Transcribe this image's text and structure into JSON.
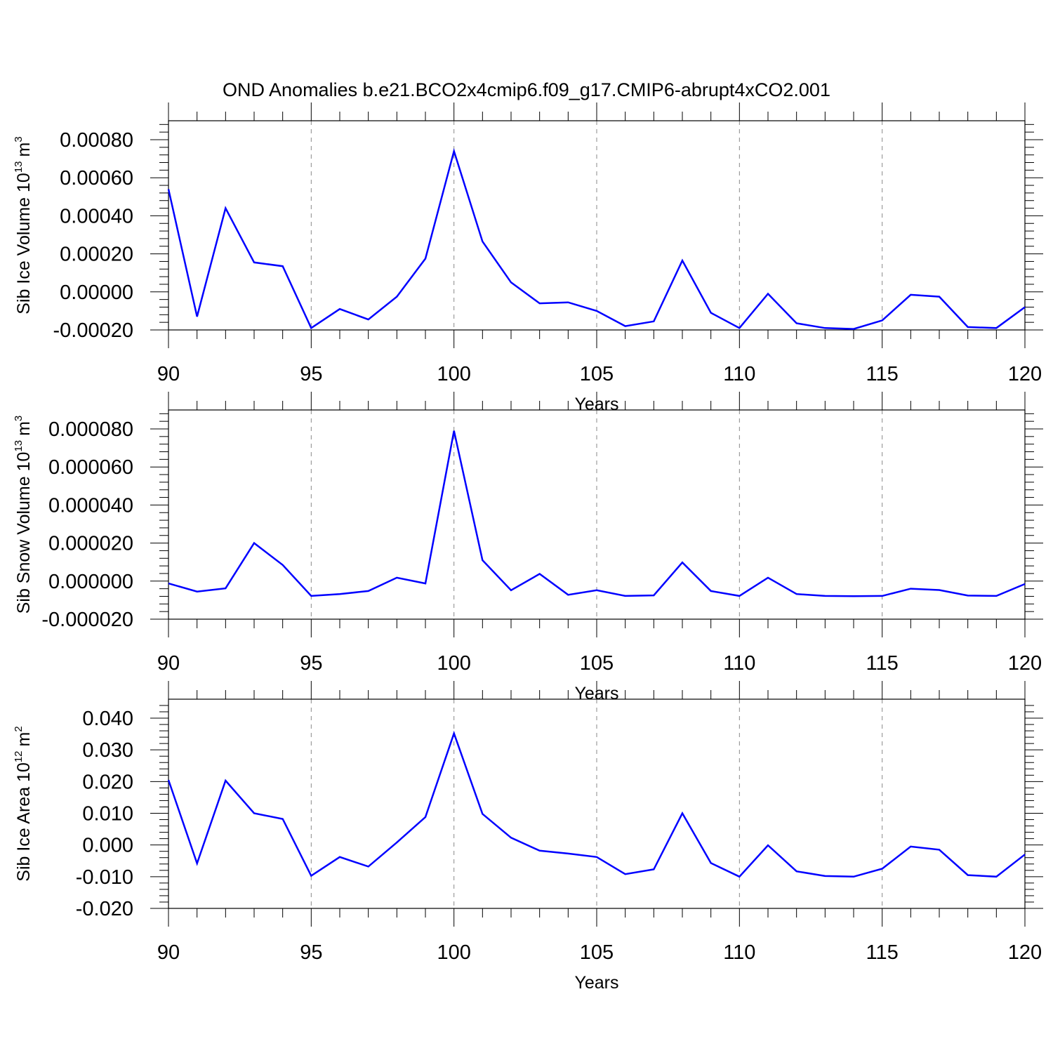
{
  "title": "OND Anomalies b.e21.BCO2x4cmip6.f09_g17.CMIP6-abrupt4xCO2.001",
  "line_color": "#0000ff",
  "chart_data": [
    {
      "type": "line",
      "ylabel": {
        "text": "Sib Ice Volume 10",
        "exp": "13",
        "unit": "m",
        "unit_exp": "3"
      },
      "xlabel": "Years",
      "xlim": [
        90,
        120
      ],
      "ylim": [
        -0.0002,
        0.0008
      ],
      "yticks": [
        -0.0002,
        0.0,
        0.0002,
        0.0004,
        0.0006,
        0.0008
      ],
      "yticklabels": [
        "-0.00020",
        "0.00000",
        "0.00020",
        "0.00040",
        "0.00060",
        "0.00080"
      ],
      "xticks": [
        90,
        95,
        100,
        105,
        110,
        115,
        120
      ],
      "xticklabels": [
        "90",
        "95",
        "100",
        "105",
        "110",
        "115",
        "120"
      ],
      "series": [
        {
          "x": [
            90,
            91,
            92,
            93,
            94,
            95,
            96,
            97,
            98,
            99,
            100,
            101,
            102,
            103,
            104,
            105,
            106,
            107,
            108,
            109,
            110,
            111,
            112,
            113,
            114,
            115,
            116,
            117,
            118,
            119,
            120
          ],
          "values": [
            0.00054,
            -0.00013,
            0.00044,
            0.000155,
            0.000135,
            -0.00019,
            -9e-05,
            -0.000145,
            -2.5e-05,
            0.000175,
            0.00074,
            0.000265,
            5e-05,
            -6e-05,
            -5.5e-05,
            -0.0001,
            -0.00018,
            -0.000155,
            0.000165,
            -0.00011,
            -0.00019,
            -1e-05,
            -0.000165,
            -0.00019,
            -0.000195,
            -0.00015,
            -1.5e-05,
            -2.5e-05,
            -0.000185,
            -0.00019,
            -8e-05
          ]
        }
      ]
    },
    {
      "type": "line",
      "ylabel": {
        "text": "Sib Snow Volume 10",
        "exp": "13",
        "unit": "m",
        "unit_exp": "3"
      },
      "xlabel": "Years",
      "xlim": [
        90,
        120
      ],
      "ylim": [
        -2e-05,
        8e-05
      ],
      "yticks": [
        -2e-05,
        0.0,
        2e-05,
        4e-05,
        6e-05,
        8e-05
      ],
      "yticklabels": [
        "-0.000020",
        "0.000000",
        "0.000020",
        "0.000040",
        "0.000060",
        "0.000080"
      ],
      "xticks": [
        90,
        95,
        100,
        105,
        110,
        115,
        120
      ],
      "xticklabels": [
        "90",
        "95",
        "100",
        "105",
        "110",
        "115",
        "120"
      ],
      "series": [
        {
          "x": [
            90,
            91,
            92,
            93,
            94,
            95,
            96,
            97,
            98,
            99,
            100,
            101,
            102,
            103,
            104,
            105,
            106,
            107,
            108,
            109,
            110,
            111,
            112,
            113,
            114,
            115,
            116,
            117,
            118,
            119,
            120
          ],
          "values": [
            -1.2e-06,
            -5.5e-06,
            -3.8e-06,
            2e-05,
            8.5e-06,
            -7.8e-06,
            -6.8e-06,
            -5.2e-06,
            1.8e-06,
            -1.2e-06,
            7.9e-05,
            1.1e-05,
            -4.8e-06,
            3.8e-06,
            -7.2e-06,
            -4.8e-06,
            -7.8e-06,
            -7.5e-06,
            9.8e-06,
            -5.2e-06,
            -7.8e-06,
            1.8e-06,
            -6.8e-06,
            -7.8e-06,
            -7.9e-06,
            -7.8e-06,
            -4e-06,
            -4.7e-06,
            -7.6e-06,
            -7.8e-06,
            -1.5e-06
          ]
        }
      ]
    },
    {
      "type": "line",
      "ylabel": {
        "text": "Sib Ice Area 10",
        "exp": "12",
        "unit": "m",
        "unit_exp": "2"
      },
      "xlabel": "Years",
      "xlim": [
        90,
        120
      ],
      "ylim": [
        -0.02,
        0.04
      ],
      "yticks": [
        -0.02,
        -0.01,
        0.0,
        0.01,
        0.02,
        0.03,
        0.04
      ],
      "yticklabels": [
        "-0.020",
        "-0.010",
        "0.000",
        "0.010",
        "0.020",
        "0.030",
        "0.040"
      ],
      "xticks": [
        90,
        95,
        100,
        105,
        110,
        115,
        120
      ],
      "xticklabels": [
        "90",
        "95",
        "100",
        "105",
        "110",
        "115",
        "120"
      ],
      "series": [
        {
          "x": [
            90,
            91,
            92,
            93,
            94,
            95,
            96,
            97,
            98,
            99,
            100,
            101,
            102,
            103,
            104,
            105,
            106,
            107,
            108,
            109,
            110,
            111,
            112,
            113,
            114,
            115,
            116,
            117,
            118,
            119,
            120
          ],
          "values": [
            0.0205,
            -0.0058,
            0.0203,
            0.01,
            0.0082,
            -0.0097,
            -0.0038,
            -0.0068,
            0.0008,
            0.0088,
            0.0352,
            0.0098,
            0.0023,
            -0.0018,
            -0.0027,
            -0.0038,
            -0.0092,
            -0.0077,
            0.01,
            -0.0057,
            -0.01,
            -0.0001,
            -0.0083,
            -0.0098,
            -0.01,
            -0.0075,
            -0.0005,
            -0.0015,
            -0.0095,
            -0.01,
            -0.003
          ]
        }
      ]
    }
  ]
}
